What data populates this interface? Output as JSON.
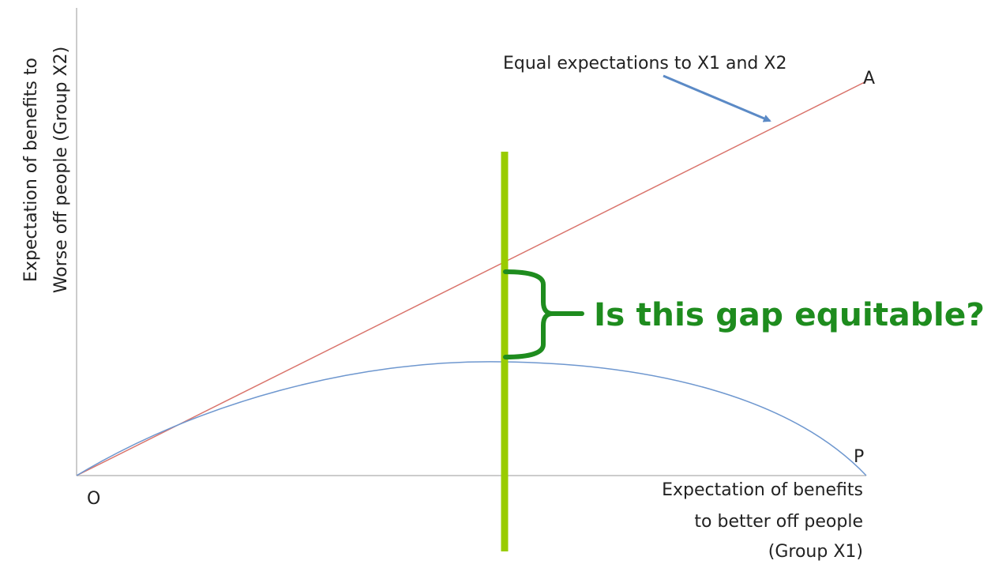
{
  "labels": {
    "line_label": "Equal expectations to X1 and X2",
    "point_a": "A",
    "point_p": "P",
    "origin": "O",
    "y_axis": [
      "Expectation of benefits to",
      "Worse off people (Group X2)"
    ],
    "x_axis": [
      "Expectation of benefits",
      "to better off people",
      "(Group X1)"
    ],
    "question": "Is this gap equitable?"
  }
}
